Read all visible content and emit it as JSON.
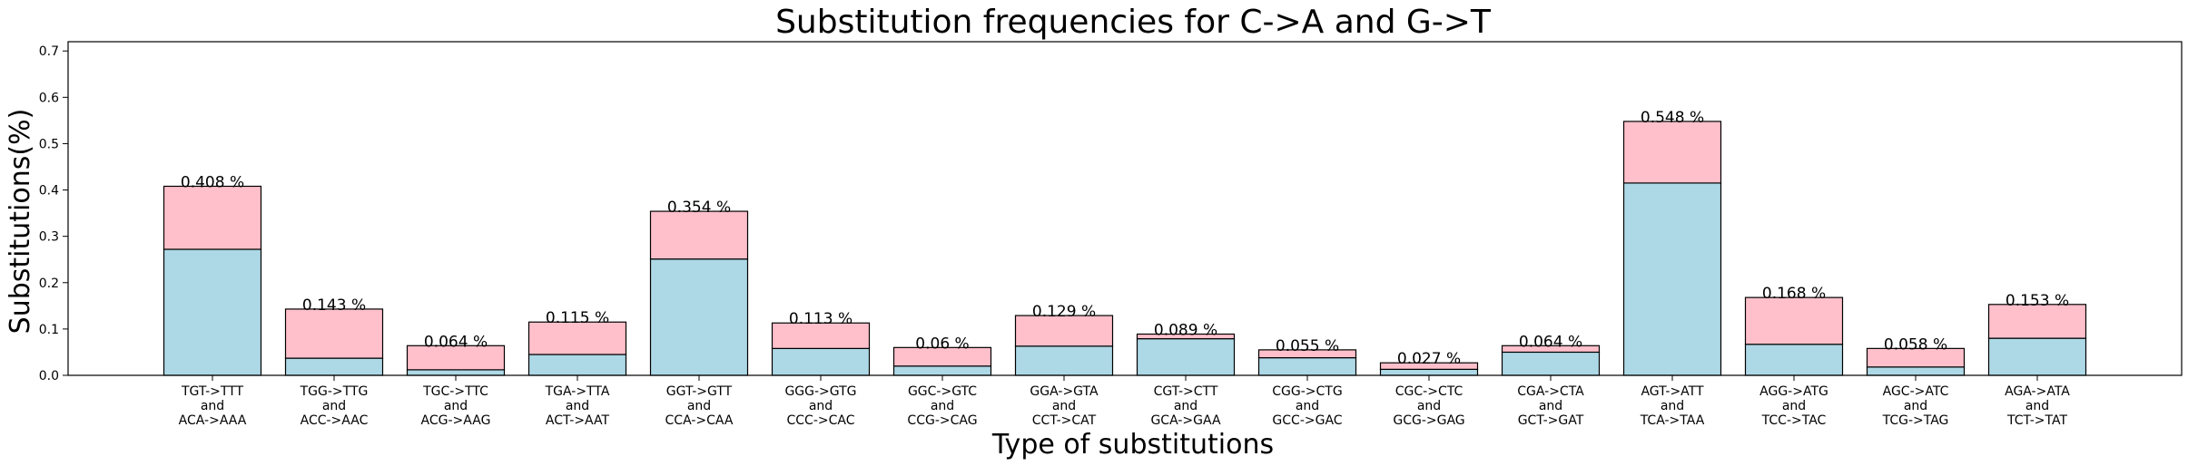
{
  "chart_data": {
    "type": "bar",
    "stacked": true,
    "title": "Substitution frequencies for C->A and G->T",
    "xlabel": "Type of substitutions",
    "ylabel": "Substitutions(%)",
    "ylim": [
      0,
      0.72
    ],
    "yticks": [
      "0.0",
      "0.1",
      "0.2",
      "0.3",
      "0.4",
      "0.5",
      "0.6",
      "0.7"
    ],
    "grid": false,
    "categories": [
      [
        "TGT->TTT",
        "and",
        "ACA->AAA"
      ],
      [
        "TGG->TTG",
        "and",
        "ACC->AAC"
      ],
      [
        "TGC->TTC",
        "and",
        "ACG->AAG"
      ],
      [
        "TGA->TTA",
        "and",
        "ACT->AAT"
      ],
      [
        "GGT->GTT",
        "and",
        "CCA->CAA"
      ],
      [
        "GGG->GTG",
        "and",
        "CCC->CAC"
      ],
      [
        "GGC->GTC",
        "and",
        "CCG->CAG"
      ],
      [
        "GGA->GTA",
        "and",
        "CCT->CAT"
      ],
      [
        "CGT->CTT",
        "and",
        "GCA->GAA"
      ],
      [
        "CGG->CTG",
        "and",
        "GCC->GAC"
      ],
      [
        "CGC->CTC",
        "and",
        "GCG->GAG"
      ],
      [
        "CGA->CTA",
        "and",
        "GCT->GAT"
      ],
      [
        "AGT->ATT",
        "and",
        "TCA->TAA"
      ],
      [
        "AGG->ATG",
        "and",
        "TCC->TAC"
      ],
      [
        "AGC->ATC",
        "and",
        "TCG->TAG"
      ],
      [
        "AGA->ATA",
        "and",
        "TCT->TAT"
      ]
    ],
    "series": [
      {
        "color": "#add8e6",
        "values": [
          0.272,
          0.037,
          0.012,
          0.045,
          0.251,
          0.058,
          0.02,
          0.063,
          0.079,
          0.038,
          0.013,
          0.05,
          0.415,
          0.067,
          0.018,
          0.08
        ]
      },
      {
        "color": "#ffc0cb",
        "values": [
          0.136,
          0.106,
          0.052,
          0.07,
          0.103,
          0.055,
          0.04,
          0.066,
          0.01,
          0.017,
          0.014,
          0.014,
          0.133,
          0.101,
          0.04,
          0.073
        ]
      }
    ],
    "labels": [
      "0.408 %",
      "0.143 %",
      "0.064 %",
      "0.115 %",
      "0.354 %",
      "0.113 %",
      "0.06 %",
      "0.129 %",
      "0.089 %",
      "0.055 %",
      "0.027 %",
      "0.064 %",
      "0.548 %",
      "0.168 %",
      "0.058 %",
      "0.153 %"
    ],
    "totals": [
      0.408,
      0.143,
      0.064,
      0.115,
      0.354,
      0.113,
      0.06,
      0.129,
      0.089,
      0.055,
      0.027,
      0.064,
      0.548,
      0.168,
      0.058,
      0.153
    ]
  }
}
